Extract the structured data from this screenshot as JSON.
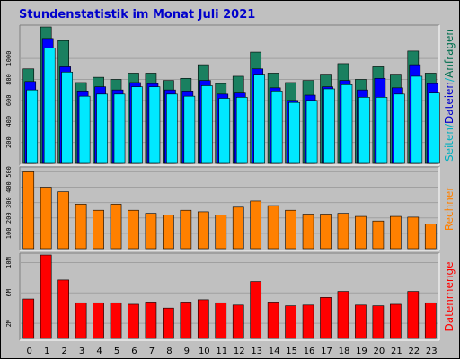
{
  "chart_data": [
    {
      "type": "bar",
      "title": "Stundenstatistik im Monat Juli 2021",
      "categories": [
        "0",
        "1",
        "2",
        "3",
        "4",
        "5",
        "6",
        "7",
        "8",
        "9",
        "10",
        "11",
        "12",
        "13",
        "14",
        "15",
        "16",
        "17",
        "18",
        "19",
        "20",
        "21",
        "22",
        "23"
      ],
      "ylim": [
        0,
        1300
      ],
      "yticks": [
        "200",
        "400",
        "600",
        "800",
        "1000"
      ],
      "ylabel_parts": [
        {
          "text": "Seiten",
          "color": "#00b0c0"
        },
        {
          "text": "/",
          "color": "#00b0c0"
        },
        {
          "text": "Dateien",
          "color": "#0000cc"
        },
        {
          "text": "/",
          "color": "#00b0c0"
        },
        {
          "text": "Anfragen",
          "color": "#006e4e"
        }
      ],
      "series": [
        {
          "name": "Anfragen",
          "color": "#1a8060",
          "values": [
            900,
            1300,
            1170,
            770,
            820,
            800,
            860,
            860,
            790,
            810,
            940,
            760,
            830,
            1060,
            860,
            770,
            790,
            850,
            950,
            800,
            920,
            850,
            1070,
            860
          ]
        },
        {
          "name": "Dateien",
          "color": "#0000ff",
          "values": [
            780,
            1190,
            920,
            690,
            730,
            700,
            770,
            760,
            700,
            690,
            790,
            660,
            670,
            900,
            720,
            600,
            650,
            730,
            790,
            700,
            810,
            720,
            940,
            760
          ]
        },
        {
          "name": "Seiten",
          "color": "#00e8ff",
          "values": [
            700,
            1100,
            870,
            640,
            660,
            660,
            730,
            730,
            660,
            640,
            740,
            620,
            630,
            850,
            690,
            580,
            600,
            710,
            750,
            630,
            630,
            660,
            830,
            670
          ]
        }
      ]
    },
    {
      "type": "bar",
      "categories": [
        "0",
        "1",
        "2",
        "3",
        "4",
        "5",
        "6",
        "7",
        "8",
        "9",
        "10",
        "11",
        "12",
        "13",
        "14",
        "15",
        "16",
        "17",
        "18",
        "19",
        "20",
        "21",
        "22",
        "23"
      ],
      "ylim": [
        0,
        520
      ],
      "yticks": [
        "100",
        "200",
        "300",
        "400",
        "500"
      ],
      "ylabel_parts": [
        {
          "text": "Rechner",
          "color": "#ff8000"
        }
      ],
      "series": [
        {
          "name": "Rechner",
          "color": "#ff8000",
          "values": [
            500,
            400,
            370,
            290,
            250,
            290,
            250,
            230,
            220,
            250,
            240,
            220,
            270,
            310,
            280,
            250,
            225,
            225,
            230,
            210,
            180,
            210,
            205,
            160
          ]
        }
      ]
    },
    {
      "type": "bar",
      "categories": [
        "0",
        "1",
        "2",
        "3",
        "4",
        "5",
        "6",
        "7",
        "8",
        "9",
        "10",
        "11",
        "12",
        "13",
        "14",
        "15",
        "16",
        "17",
        "18",
        "19",
        "20",
        "21",
        "22",
        "23"
      ],
      "ylim": [
        0,
        11000000
      ],
      "yticks": [
        "2M",
        "6M",
        "10M"
      ],
      "ylabel_parts": [
        {
          "text": "Datenmenge",
          "color": "#ff0000"
        }
      ],
      "series": [
        {
          "name": "Datenmenge",
          "color": "#ff0000",
          "values": [
            5200000,
            11000000,
            7700000,
            4700000,
            4700000,
            4700000,
            4500000,
            4800000,
            4000000,
            4800000,
            5100000,
            4700000,
            4400000,
            7500000,
            4800000,
            4300000,
            4400000,
            5400000,
            6200000,
            4400000,
            4300000,
            4500000,
            6200000,
            4700000
          ]
        }
      ]
    }
  ]
}
